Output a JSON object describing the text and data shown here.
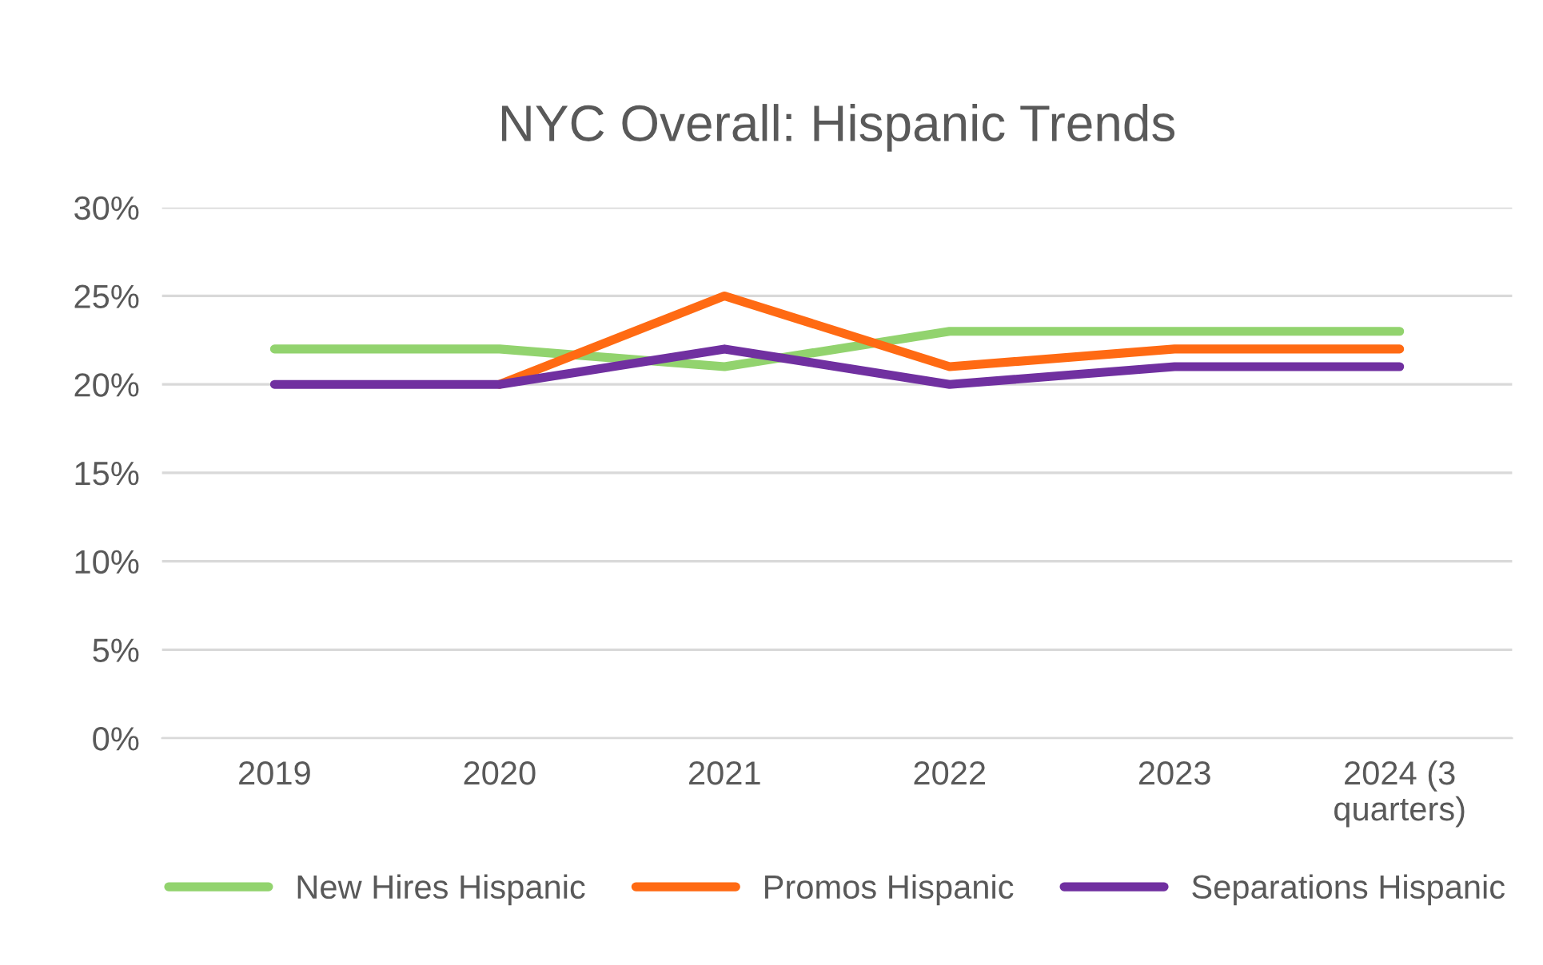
{
  "chart_data": {
    "type": "line",
    "title": "NYC Overall: Hispanic Trends",
    "categories": [
      "2019",
      "2020",
      "2021",
      "2022",
      "2023",
      "2024 (3\nquarters)"
    ],
    "series": [
      {
        "name": "New Hires Hispanic",
        "color": "#92d36e",
        "values": [
          22,
          22,
          21,
          23,
          23,
          23
        ]
      },
      {
        "name": "Promos Hispanic",
        "color": "#ff6a13",
        "values": [
          null,
          20,
          25,
          21,
          22,
          22
        ]
      },
      {
        "name": "Separations Hispanic",
        "color": "#7030a0",
        "values": [
          20,
          20,
          22,
          20,
          21,
          21
        ]
      }
    ],
    "ylim": [
      0,
      30
    ],
    "yticks": [
      {
        "value": 0,
        "label": "0%"
      },
      {
        "value": 5,
        "label": "5%"
      },
      {
        "value": 10,
        "label": "10%"
      },
      {
        "value": 15,
        "label": "15%"
      },
      {
        "value": 20,
        "label": "20%"
      },
      {
        "value": 25,
        "label": "25%"
      },
      {
        "value": 30,
        "label": "30%"
      }
    ],
    "grid": "y",
    "legend": "bottom",
    "marker": "none",
    "line_style": "solid"
  }
}
